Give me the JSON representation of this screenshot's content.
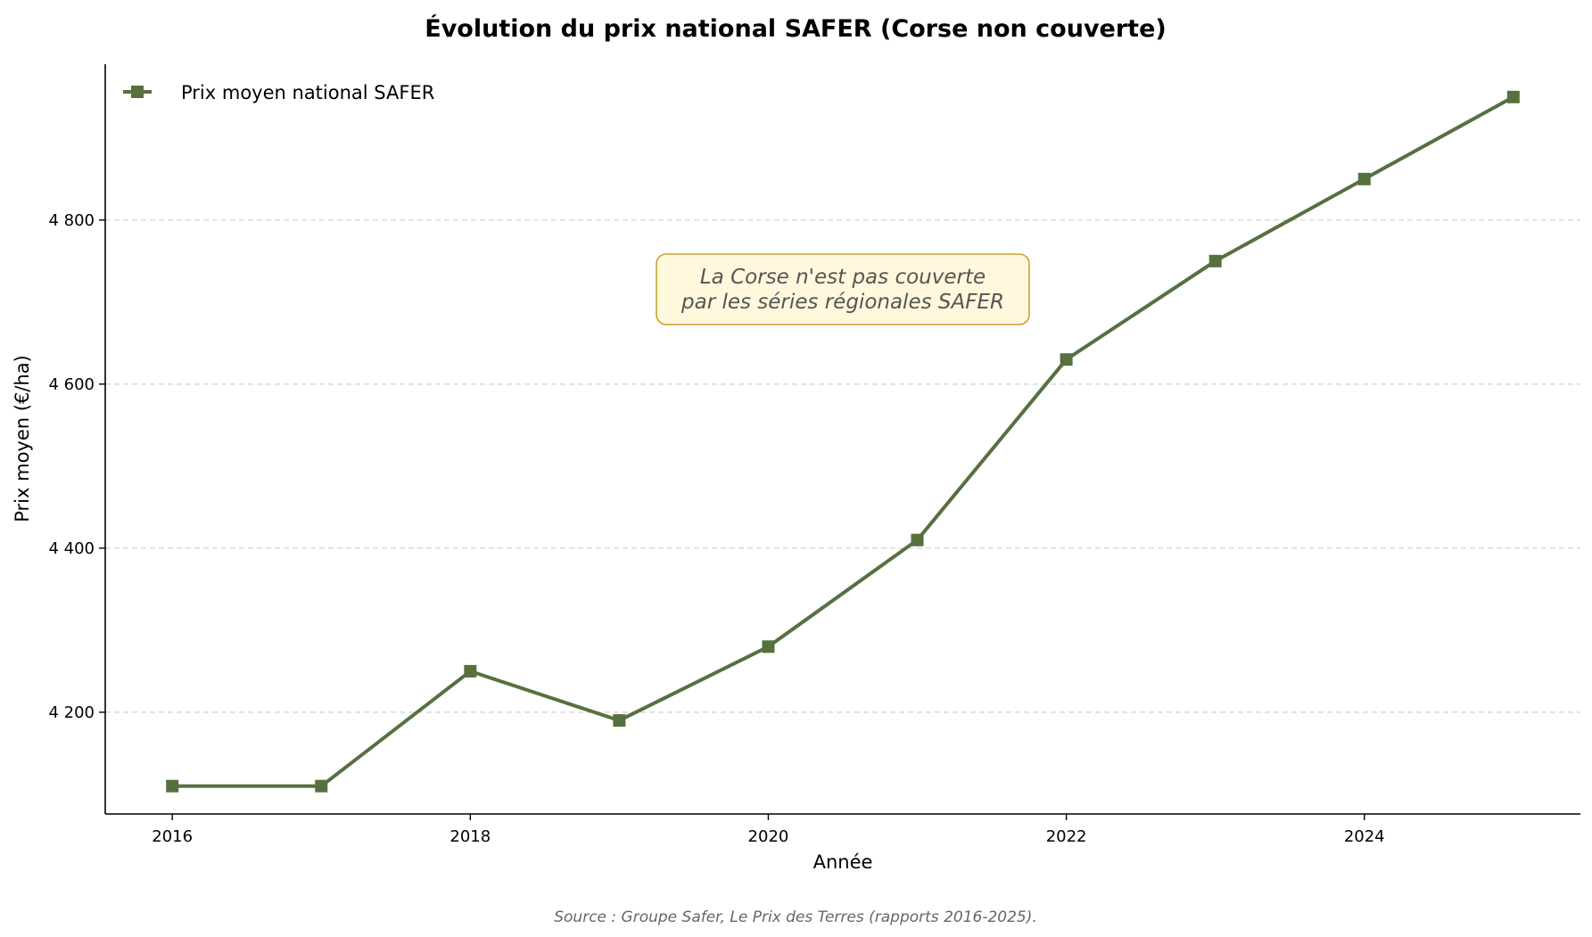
{
  "chart_data": {
    "type": "line",
    "title": "Évolution du prix national SAFER (Corse non couverte)",
    "xlabel": "Année",
    "ylabel": "Prix moyen (€/ha)",
    "x": [
      2016,
      2017,
      2018,
      2019,
      2020,
      2021,
      2022,
      2023,
      2024,
      2025
    ],
    "series": [
      {
        "name": "Prix moyen national SAFER",
        "values": [
          4110,
          4110,
          4250,
          4190,
          4280,
          4410,
          4630,
          4750,
          4850,
          4950
        ],
        "color": "#56703f",
        "marker": "square"
      }
    ],
    "xticks": [
      2016,
      2018,
      2020,
      2022,
      2024
    ],
    "xtick_labels": [
      "2016",
      "2018",
      "2020",
      "2022",
      "2024"
    ],
    "yticks": [
      4200,
      4400,
      4600,
      4800
    ],
    "ytick_labels": [
      "4 200",
      "4 400",
      "4 600",
      "4 800"
    ],
    "xlim": [
      2015.55,
      2025.45
    ],
    "ylim": [
      4076,
      4990
    ],
    "grid": "horizontal dashed",
    "legend_position": "top-left",
    "annotation": {
      "lines": [
        "La Corse n'est pas couverte",
        "par les séries régionales SAFER"
      ],
      "x": 2020.5,
      "y": 4713,
      "fill": "#fff8dc",
      "border": "#c8a030"
    },
    "source": "Source : Groupe Safer, Le Prix des Terres (rapports 2016-2025)."
  }
}
